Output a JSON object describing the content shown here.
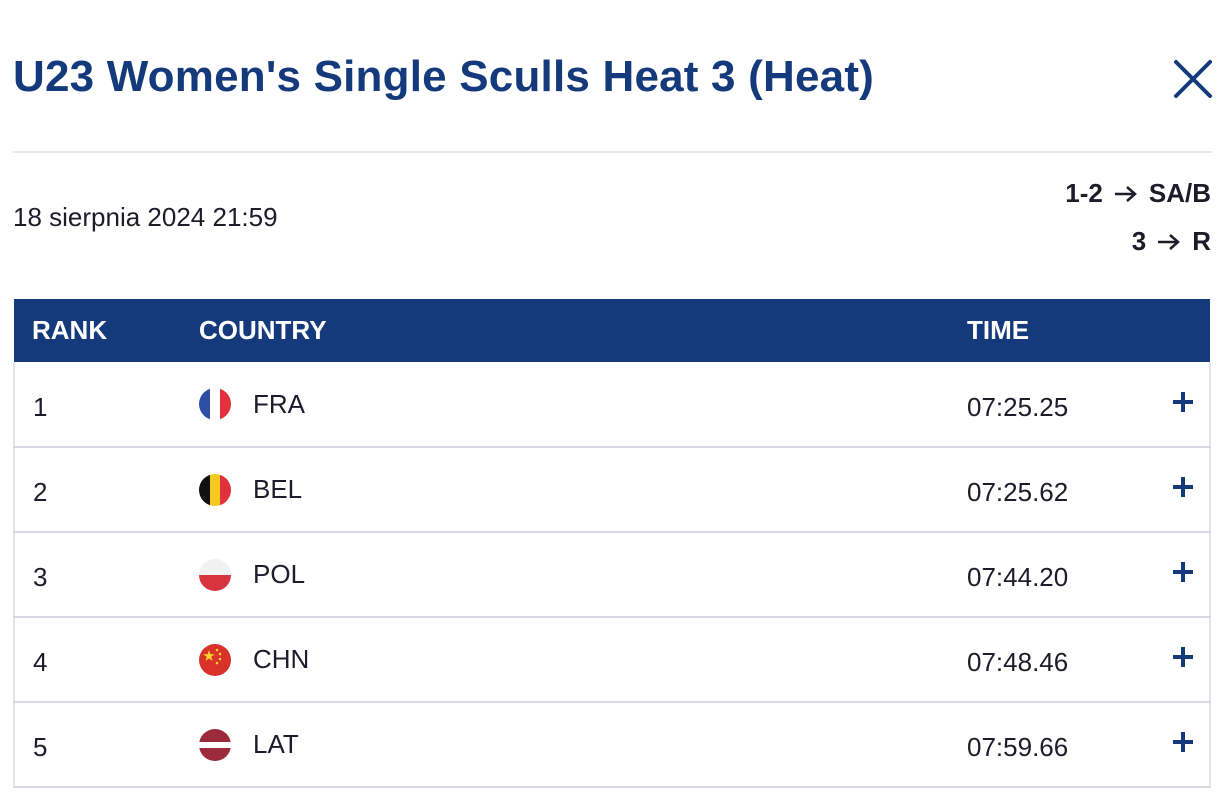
{
  "header": {
    "title": "U23 Women's Single Sculls Heat 3 (Heat)",
    "close_icon": "close-icon"
  },
  "meta": {
    "datetime": "18 sierpnia 2024 21:59",
    "progression": [
      {
        "places": "1-2",
        "target": "SA/B"
      },
      {
        "places": "3",
        "target": "R"
      }
    ]
  },
  "table": {
    "headers": {
      "rank": "RANK",
      "country": "COUNTRY",
      "time": "TIME"
    },
    "rows": [
      {
        "rank": "1",
        "country": "FRA",
        "time": "07:25.25",
        "flag": "france-flag-icon"
      },
      {
        "rank": "2",
        "country": "BEL",
        "time": "07:25.62",
        "flag": "belgium-flag-icon"
      },
      {
        "rank": "3",
        "country": "POL",
        "time": "07:44.20",
        "flag": "poland-flag-icon"
      },
      {
        "rank": "4",
        "country": "CHN",
        "time": "07:48.46",
        "flag": "china-flag-icon"
      },
      {
        "rank": "5",
        "country": "LAT",
        "time": "07:59.66",
        "flag": "latvia-flag-icon"
      }
    ],
    "expand_icon": "plus-icon"
  },
  "colors": {
    "brand_navy": "#143a7b",
    "text": "#1c1c2a",
    "divider": "#e6e8ec"
  }
}
